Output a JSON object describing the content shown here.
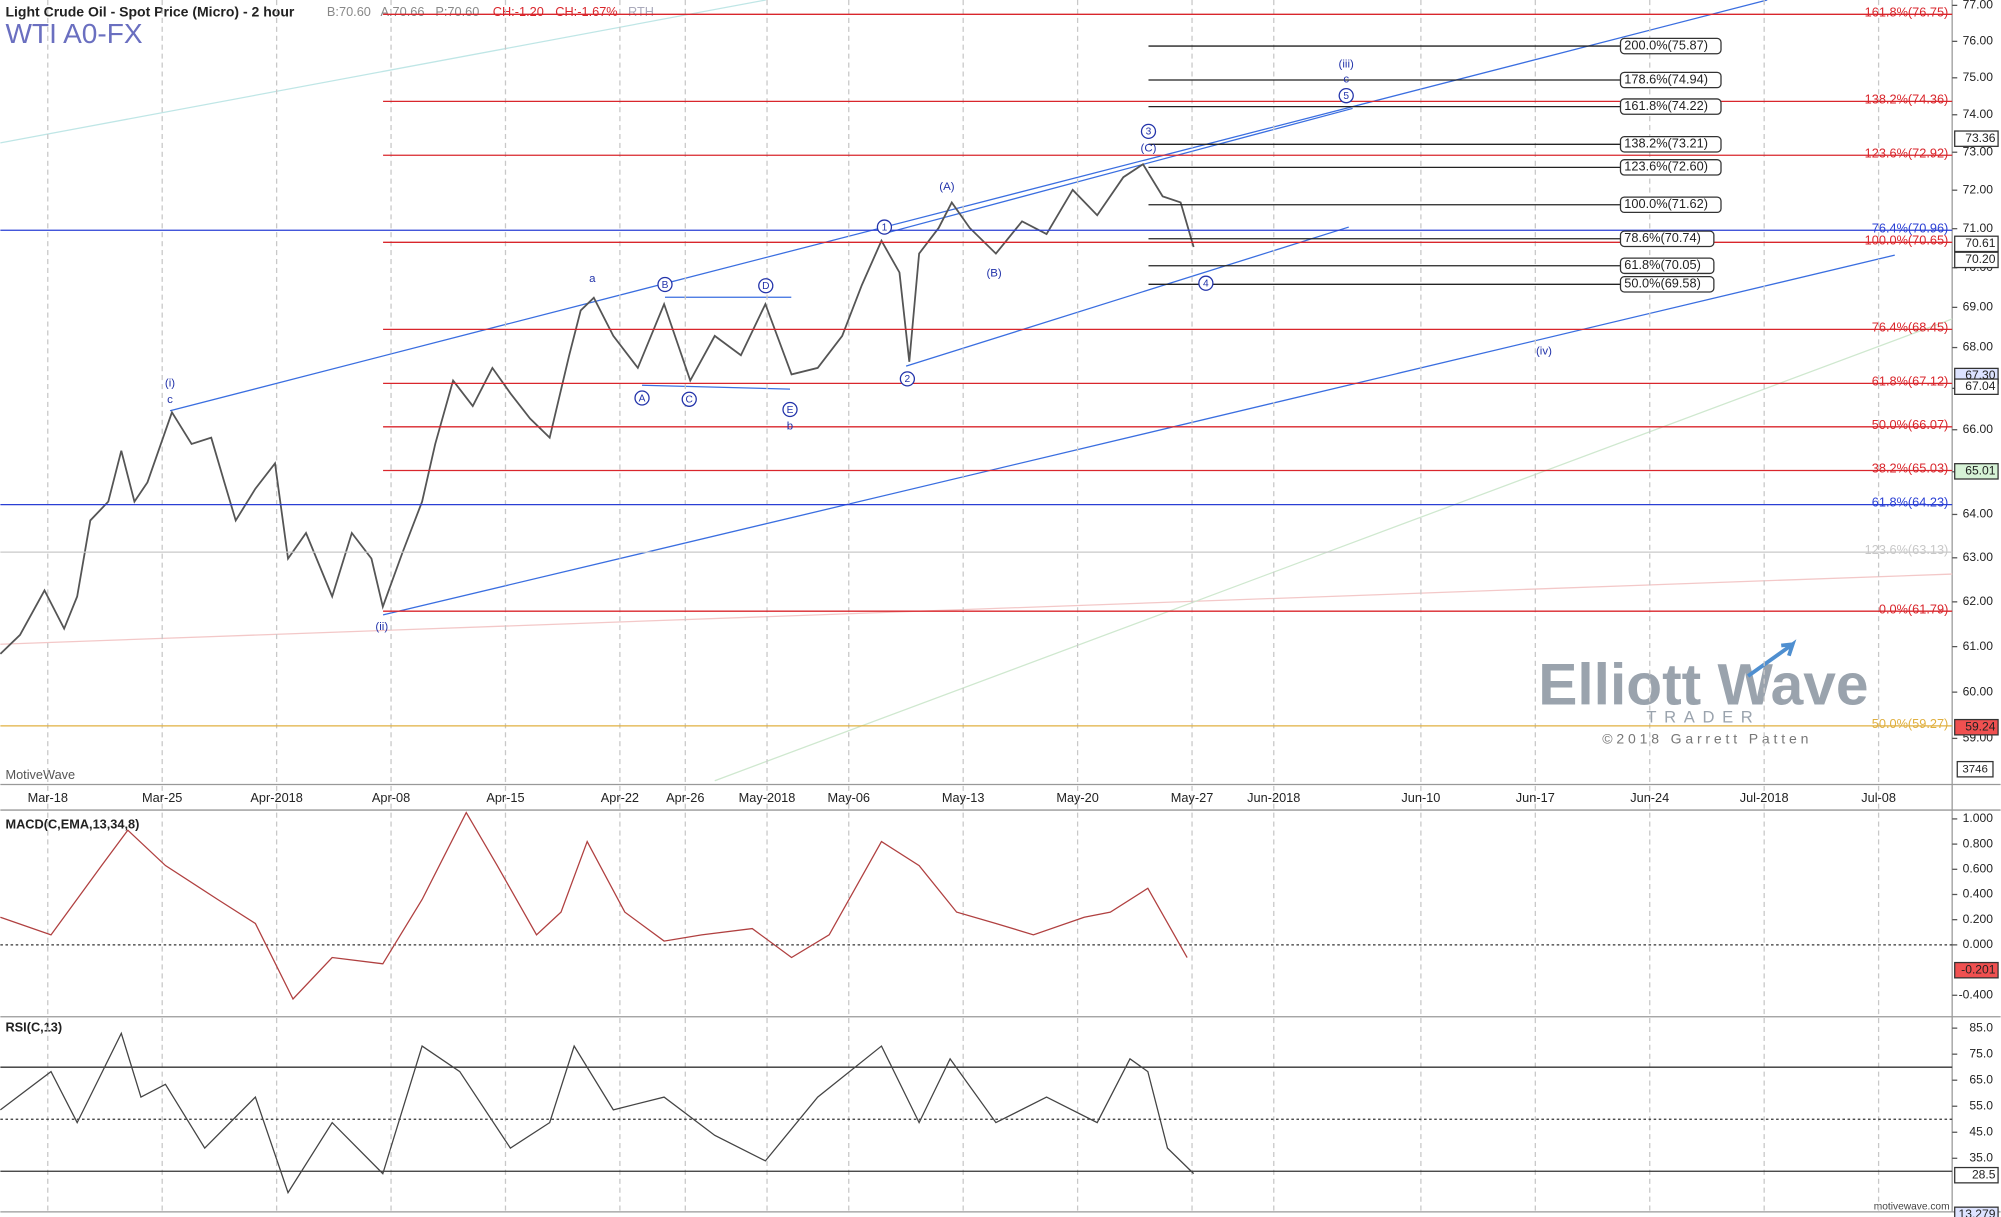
{
  "header": {
    "title": "Light Crude Oil - Spot Price (Micro) - 2 hour",
    "quote": [
      "B:70.60",
      "A:70.66",
      "P:70.60"
    ],
    "change": [
      "CH:-1.20",
      "CH:-1.67%"
    ],
    "session": "RTH",
    "symbol": "WTI A0-FX",
    "watermark": "MotiveWave",
    "logo": "Elliott Wave",
    "logo_sub": "TRADER",
    "copyright": "©2018 Garrett Patten",
    "site": "motivewave.com"
  },
  "chart_data": [
    {
      "type": "line",
      "title": "Price",
      "log_scale": true,
      "xlim": [
        -2.9,
        116.5
      ],
      "ylim": [
        58.1,
        77.15
      ],
      "xticks": [
        {
          "value": 0,
          "label": "Mar-18"
        },
        {
          "value": 7,
          "label": "Mar-25"
        },
        {
          "value": 14,
          "label": "Apr-2018"
        },
        {
          "value": 21,
          "label": "Apr-08"
        },
        {
          "value": 28,
          "label": "Apr-15"
        },
        {
          "value": 35,
          "label": "Apr-22"
        },
        {
          "value": 39,
          "label": "Apr-26"
        },
        {
          "value": 44,
          "label": "May-2018"
        },
        {
          "value": 49,
          "label": "May-06"
        },
        {
          "value": 56,
          "label": "May-13"
        },
        {
          "value": 63,
          "label": "May-20"
        },
        {
          "value": 70,
          "label": "May-27"
        },
        {
          "value": 75,
          "label": "Jun-2018"
        },
        {
          "value": 84,
          "label": "Jun-10"
        },
        {
          "value": 91,
          "label": "Jun-17"
        },
        {
          "value": 98,
          "label": "Jun-24"
        },
        {
          "value": 105,
          "label": "Jul-2018"
        },
        {
          "value": 112,
          "label": "Jul-08"
        }
      ],
      "yticks": [
        {
          "value": 59,
          "label": "59.00"
        },
        {
          "value": 60,
          "label": "60.00"
        },
        {
          "value": 61,
          "label": "61.00"
        },
        {
          "value": 62,
          "label": "62.00"
        },
        {
          "value": 63,
          "label": "63.00"
        },
        {
          "value": 64,
          "label": "64.00"
        },
        {
          "value": 65,
          "label": "65.00"
        },
        {
          "value": 66,
          "label": "66.00"
        },
        {
          "value": 67,
          "label": "67.00"
        },
        {
          "value": 68,
          "label": "68.00"
        },
        {
          "value": 69,
          "label": "69.00"
        },
        {
          "value": 70,
          "label": "70.00"
        },
        {
          "value": 71,
          "label": "71.00"
        },
        {
          "value": 72,
          "label": "72.00"
        },
        {
          "value": 73,
          "label": "73.00"
        },
        {
          "value": 74,
          "label": "74.00"
        },
        {
          "value": 75,
          "label": "75.00"
        },
        {
          "value": 76,
          "label": "76.00"
        },
        {
          "value": 77,
          "label": "77.00"
        }
      ],
      "x": [
        -2.9,
        -1.7,
        -0.2,
        1.0,
        1.8,
        2.6,
        3.7,
        4.5,
        5.3,
        6.1,
        7.6,
        8.8,
        10.0,
        10.8,
        11.5,
        12.7,
        13.9,
        14.7,
        15.8,
        17.4,
        18.6,
        19.8,
        20.5,
        21.7,
        22.9,
        23.7,
        24.8,
        26.0,
        27.2,
        28.3,
        29.5,
        30.7,
        31.9,
        32.6,
        33.4,
        34.6,
        36.1,
        37.7,
        39.3,
        40.8,
        42.4,
        43.9,
        45.5,
        47.1,
        48.6,
        49.8,
        51.0,
        52.1,
        52.7,
        53.3,
        54.5,
        55.3,
        56.4,
        58.0,
        59.6,
        61.1,
        62.7,
        64.2,
        65.8,
        67.0,
        68.2,
        69.3,
        70.1
      ],
      "series": [
        {
          "name": "Light Crude Oil",
          "color": "#555555",
          "values": [
            60.84,
            61.26,
            62.26,
            61.4,
            62.12,
            63.86,
            64.3,
            65.5,
            64.3,
            64.75,
            66.42,
            65.66,
            65.81,
            64.75,
            63.86,
            64.6,
            65.2,
            62.98,
            63.57,
            62.12,
            63.57,
            62.98,
            61.89,
            63.12,
            64.3,
            65.66,
            67.19,
            66.57,
            67.5,
            66.88,
            66.27,
            65.81,
            67.81,
            68.92,
            69.24,
            68.29,
            67.5,
            69.08,
            67.19,
            68.29,
            67.81,
            69.08,
            67.34,
            67.5,
            68.29,
            69.56,
            70.69,
            69.88,
            67.65,
            70.36,
            71.02,
            71.68,
            71.02,
            70.36,
            71.19,
            70.86,
            72.01,
            71.35,
            72.34,
            72.68,
            71.84,
            71.68,
            70.53
          ]
        }
      ],
      "fib_levels": [
        {
          "label": "161.8%(76.75)",
          "value": 76.75,
          "color": "#d9262c",
          "style": "right"
        },
        {
          "label": "138.2%(74.36)",
          "value": 74.36,
          "color": "#d9262c",
          "style": "right"
        },
        {
          "label": "123.6%(72.92)",
          "value": 72.92,
          "color": "#d9262c",
          "style": "right"
        },
        {
          "label": "76.4%(70.96)",
          "value": 70.96,
          "color": "#2a3fd4",
          "style": "full"
        },
        {
          "label": "100.0%(70.65)",
          "value": 70.65,
          "color": "#d9262c",
          "style": "right"
        },
        {
          "label": "76.4%(68.45)",
          "value": 68.45,
          "color": "#d9262c",
          "style": "right"
        },
        {
          "label": "61.8%(67.12)",
          "value": 67.12,
          "color": "#d9262c",
          "style": "right"
        },
        {
          "label": "50.0%(66.07)",
          "value": 66.07,
          "color": "#d9262c",
          "style": "right"
        },
        {
          "label": "38.2%(65.03)",
          "value": 65.03,
          "color": "#d9262c",
          "style": "right"
        },
        {
          "label": "61.8%(64.23)",
          "value": 64.23,
          "color": "#2a3fd4",
          "style": "full"
        },
        {
          "label": "123.6%(63.13)",
          "value": 63.13,
          "color": "#c8c8c8",
          "style": "full"
        },
        {
          "label": "0.0%(61.79)",
          "value": 61.79,
          "color": "#d9262c",
          "style": "right"
        },
        {
          "label": "50.0%(59.27)",
          "value": 59.27,
          "color": "#e0b040",
          "style": "full"
        },
        {
          "label": "200.0%(75.87)",
          "value": 75.87,
          "color": "#222222",
          "style": "target"
        },
        {
          "label": "178.6%(74.94)",
          "value": 74.94,
          "color": "#222222",
          "style": "target"
        },
        {
          "label": "161.8%(74.22)",
          "value": 74.22,
          "color": "#222222",
          "style": "target"
        },
        {
          "label": "138.2%(73.21)",
          "value": 73.21,
          "color": "#222222",
          "style": "target"
        },
        {
          "label": "123.6%(72.60)",
          "value": 72.6,
          "color": "#222222",
          "style": "target"
        },
        {
          "label": "100.0%(71.62)",
          "value": 71.62,
          "color": "#222222",
          "style": "target"
        },
        {
          "label": "78.6%(70.74)",
          "value": 70.74,
          "color": "#222222",
          "style": "target"
        },
        {
          "label": "61.8%(70.05)",
          "value": 70.05,
          "color": "#222222",
          "style": "target"
        },
        {
          "label": "50.0%(69.58)",
          "value": 69.58,
          "color": "#222222",
          "style": "target"
        }
      ],
      "price_tags": [
        {
          "value": 73.36,
          "label": "73.36",
          "color": "#ffffff"
        },
        {
          "value": 70.61,
          "label": "70.61",
          "color": "#ffffff"
        },
        {
          "value": 70.2,
          "label": "70.20",
          "color": "#ffffff"
        },
        {
          "value": 67.3,
          "label": "67.30",
          "color": "#dde3ff"
        },
        {
          "value": 67.04,
          "label": "67.04",
          "color": "#ffffff"
        },
        {
          "value": 65.01,
          "label": "65.01",
          "color": "#d6f2d6"
        },
        {
          "value": 59.24,
          "label": "59.24",
          "color": "#f05050"
        }
      ],
      "volume_tag": "3746",
      "wave_labels": [
        "(i)",
        "c",
        "a",
        "b",
        "(ii)",
        "(iii)",
        "c",
        "(iv)",
        "(A)",
        "(B)",
        "(C)",
        "A",
        "B",
        "C",
        "D",
        "E",
        "1",
        "2",
        "3",
        "4",
        "5"
      ]
    },
    {
      "type": "line",
      "title": "MACD(C,EMA,13,34,8)",
      "ylim": [
        -0.55,
        1.05
      ],
      "yticks": [
        {
          "value": 1,
          "label": "1.000"
        },
        {
          "value": 0.8,
          "label": "0.800"
        },
        {
          "value": 0.6,
          "label": "0.600"
        },
        {
          "value": 0.4,
          "label": "0.400"
        },
        {
          "value": 0.2,
          "label": "0.200"
        },
        {
          "value": 0,
          "label": "0.000"
        },
        {
          "value": -0.4,
          "label": "-0.400"
        }
      ],
      "tags": [
        {
          "value": -0.201,
          "label": "-0.201",
          "color": "#f05050"
        }
      ],
      "x": [
        -2.9,
        0.2,
        3.3,
        4.9,
        7.2,
        10.4,
        12.7,
        15.0,
        17.4,
        20.5,
        22.9,
        25.6,
        27.5,
        29.9,
        31.4,
        33.0,
        35.3,
        37.7,
        40.0,
        43.1,
        45.5,
        47.8,
        51.0,
        53.3,
        55.6,
        58.0,
        60.3,
        63.4,
        65.0,
        67.3,
        69.7
      ],
      "series": [
        {
          "name": "MACD",
          "color": "#b04040",
          "values": [
            0.22,
            0.08,
            0.63,
            0.91,
            0.63,
            0.36,
            0.17,
            -0.43,
            -0.1,
            -0.15,
            0.36,
            1.05,
            0.63,
            0.08,
            0.26,
            0.82,
            0.26,
            0.03,
            0.08,
            0.13,
            -0.1,
            0.08,
            0.82,
            0.63,
            0.26,
            0.17,
            0.08,
            0.22,
            0.26,
            0.45,
            -0.1
          ]
        }
      ]
    },
    {
      "type": "line",
      "title": "RSI(C,13)",
      "ylim": [
        14.4,
        88.9
      ],
      "yticks": [
        {
          "value": 85,
          "label": "85.0"
        },
        {
          "value": 75,
          "label": "75.0"
        },
        {
          "value": 65,
          "label": "65.0"
        },
        {
          "value": 55,
          "label": "55.0"
        },
        {
          "value": 45,
          "label": "45.0"
        },
        {
          "value": 35,
          "label": "35.0"
        }
      ],
      "levels": [
        70,
        50,
        30
      ],
      "tags": [
        {
          "value": 28.5,
          "label": "28.5",
          "color": "#ffffff"
        },
        {
          "value": 13.279,
          "label": "13.279",
          "color": "#dde3ff"
        }
      ],
      "x": [
        -2.9,
        0.2,
        1.8,
        4.5,
        5.7,
        7.2,
        9.6,
        12.7,
        14.7,
        17.4,
        20.5,
        22.9,
        25.2,
        28.3,
        30.7,
        32.2,
        34.6,
        37.7,
        40.8,
        43.9,
        47.1,
        51.0,
        53.3,
        55.2,
        58.0,
        61.1,
        64.2,
        66.2,
        67.3,
        68.5,
        70.1
      ],
      "series": [
        {
          "name": "RSI",
          "color": "#444444",
          "values": [
            53.6,
            68.3,
            48.7,
            83.0,
            58.5,
            63.4,
            38.9,
            58.5,
            21.8,
            48.7,
            29.1,
            78.1,
            68.3,
            38.9,
            48.7,
            78.1,
            53.6,
            58.5,
            43.8,
            34.0,
            58.5,
            78.1,
            48.7,
            73.2,
            48.7,
            58.5,
            48.7,
            73.2,
            68.3,
            38.9,
            29.1
          ]
        }
      ]
    }
  ]
}
